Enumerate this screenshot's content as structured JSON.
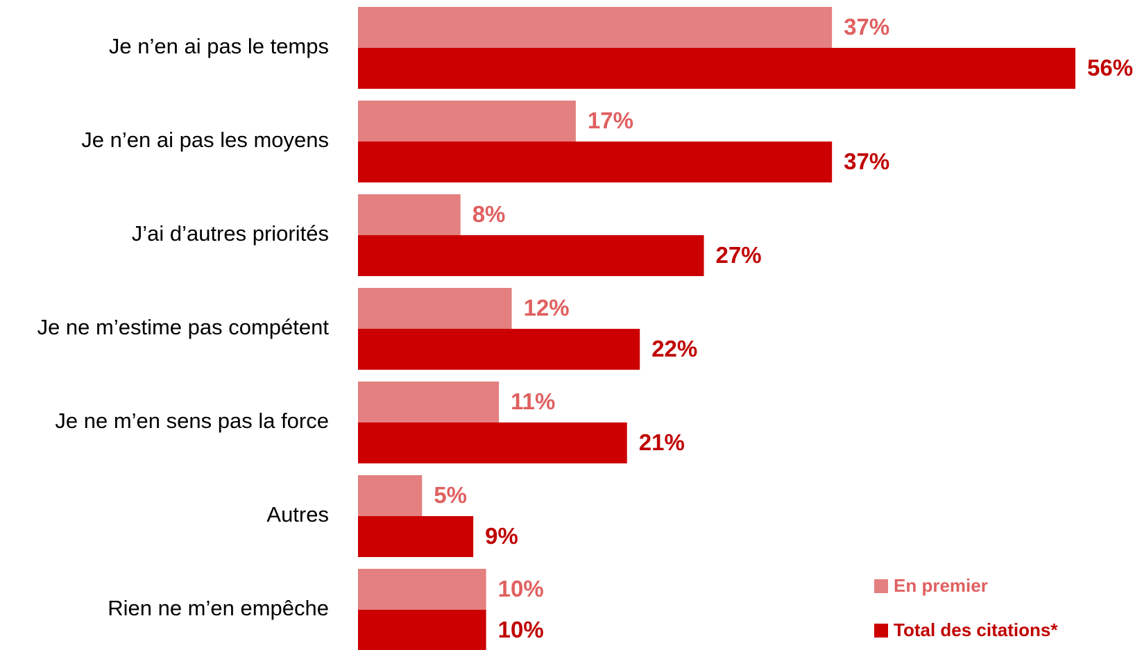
{
  "chart_data": {
    "type": "bar",
    "orientation": "horizontal",
    "categories": [
      "Je n’en ai pas le temps",
      "Je n’en ai pas les moyens",
      "J’ai d’autres priorités",
      "Je ne m’estime pas compétent",
      "Je ne m’en sens pas la force",
      "Autres",
      "Rien ne m’en empêche"
    ],
    "series": [
      {
        "name": "En premier",
        "color": "#e48080",
        "values": [
          37,
          17,
          8,
          12,
          11,
          5,
          10
        ],
        "value_labels": [
          "37%",
          "17%",
          "8%",
          "12%",
          "11%",
          "5%",
          "10%"
        ]
      },
      {
        "name": "Total des citations*",
        "color": "#cc0000",
        "values": [
          56,
          37,
          27,
          22,
          21,
          9,
          10
        ],
        "value_labels": [
          "56%",
          "37%",
          "27%",
          "22%",
          "21%",
          "9%",
          "10%"
        ]
      }
    ],
    "legend": "bottom-right"
  }
}
